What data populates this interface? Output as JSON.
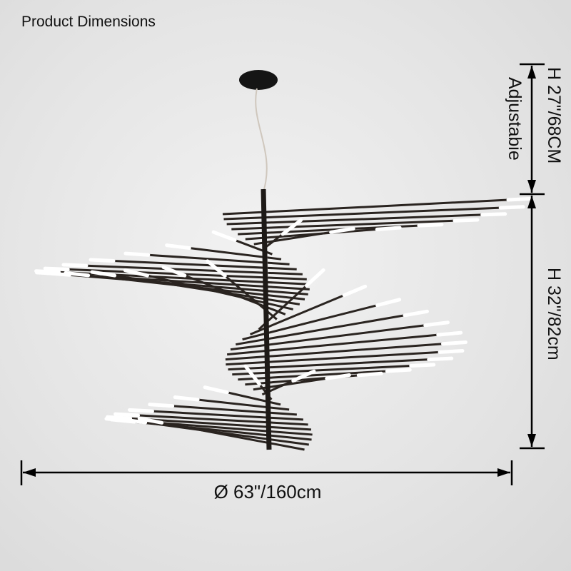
{
  "title": "Product Dimensions",
  "dimensions": {
    "cord_height": "H 27\"/68CM",
    "cord_note": "Adjustabie",
    "body_height": "H 32\"/82cm",
    "diameter": "Ø 63\"/160cm"
  },
  "colors": {
    "arm": "#2a2420",
    "light": "#ffffff",
    "arrow": "#000000"
  }
}
